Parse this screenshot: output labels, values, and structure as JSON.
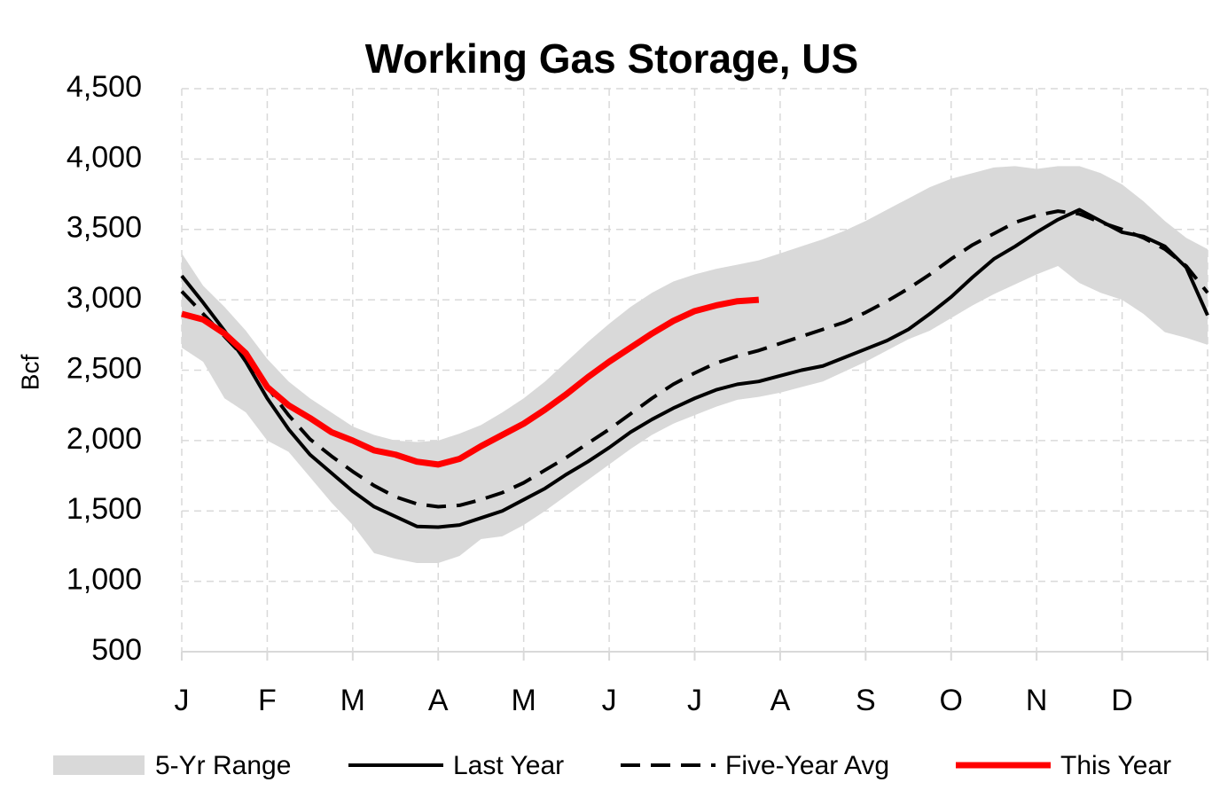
{
  "chart_data": {
    "type": "line",
    "title": "Working Gas Storage, US",
    "y_label": "Bcf",
    "categories": [
      "J",
      null,
      null,
      null,
      "F",
      null,
      null,
      null,
      "M",
      null,
      null,
      null,
      "A",
      null,
      null,
      null,
      "M",
      null,
      null,
      null,
      "J",
      null,
      null,
      null,
      "J",
      null,
      null,
      null,
      "A",
      null,
      null,
      null,
      "S",
      null,
      null,
      null,
      "O",
      null,
      null,
      null,
      "N",
      null,
      null,
      null,
      "D",
      null,
      null,
      null,
      null
    ],
    "ylim": [
      500,
      4500
    ],
    "yticks": [
      500,
      {
        "value": 1000,
        "label": "1,000"
      },
      {
        "value": 1500,
        "label": "1,500"
      },
      {
        "value": 2000,
        "label": "2,000"
      },
      {
        "value": 2500,
        "label": "2,500"
      },
      {
        "value": 3000,
        "label": "3,000"
      },
      {
        "value": 3500,
        "label": "3,500"
      },
      {
        "value": 4000,
        "label": "4,000"
      },
      {
        "value": 4500,
        "label": "4,500"
      }
    ],
    "grid": true,
    "legend": "bottom",
    "series": [
      {
        "name": "5-Yr Range",
        "type": "band",
        "color": "#d9d9d9",
        "high": [
          3330,
          3100,
          2950,
          2780,
          2580,
          2420,
          2300,
          2200,
          2100,
          2040,
          2000,
          1990,
          2000,
          2050,
          2110,
          2200,
          2300,
          2420,
          2560,
          2700,
          2830,
          2950,
          3050,
          3130,
          3180,
          3220,
          3250,
          3280,
          3330,
          3380,
          3430,
          3490,
          3560,
          3640,
          3720,
          3800,
          3860,
          3900,
          3940,
          3950,
          3930,
          3950,
          3950,
          3900,
          3820,
          3700,
          3560,
          3440,
          3360
        ],
        "low": [
          2660,
          2560,
          2300,
          2200,
          2000,
          1920,
          1740,
          1560,
          1400,
          1200,
          1160,
          1130,
          1130,
          1180,
          1300,
          1320,
          1400,
          1500,
          1610,
          1720,
          1830,
          1940,
          2040,
          2120,
          2180,
          2240,
          2290,
          2310,
          2340,
          2380,
          2420,
          2490,
          2560,
          2640,
          2720,
          2780,
          2870,
          2960,
          3040,
          3110,
          3180,
          3240,
          3120,
          3050,
          3000,
          2900,
          2770,
          2730,
          2680
        ]
      },
      {
        "name": "Last Year",
        "color": "#000000",
        "style": "solid",
        "values": [
          3170,
          2980,
          2780,
          2560,
          2300,
          2080,
          1900,
          1770,
          1640,
          1530,
          1460,
          1390,
          1385,
          1400,
          1450,
          1500,
          1580,
          1660,
          1760,
          1850,
          1950,
          2060,
          2150,
          2230,
          2300,
          2360,
          2400,
          2420,
          2460,
          2500,
          2530,
          2590,
          2650,
          2710,
          2790,
          2900,
          3020,
          3160,
          3290,
          3380,
          3480,
          3570,
          3640,
          3560,
          3480,
          3450,
          3380,
          3230,
          2890
        ]
      },
      {
        "name": "Five-Year Avg",
        "color": "#000000",
        "style": "dashed",
        "values": [
          3060,
          2900,
          2740,
          2580,
          2380,
          2180,
          2010,
          1890,
          1780,
          1680,
          1600,
          1550,
          1530,
          1540,
          1580,
          1630,
          1700,
          1790,
          1880,
          1980,
          2080,
          2190,
          2300,
          2400,
          2480,
          2550,
          2600,
          2640,
          2690,
          2740,
          2790,
          2840,
          2910,
          2990,
          3080,
          3180,
          3290,
          3390,
          3470,
          3550,
          3600,
          3630,
          3610,
          3550,
          3500,
          3440,
          3360,
          3240,
          3050
        ]
      },
      {
        "name": "This Year",
        "color": "#ff0000",
        "style": "solid",
        "values": [
          2900,
          2860,
          2760,
          2620,
          2380,
          2250,
          2160,
          2060,
          2000,
          1930,
          1900,
          1850,
          1830,
          1870,
          1960,
          2040,
          2120,
          2220,
          2330,
          2450,
          2560,
          2660,
          2760,
          2850,
          2920,
          2960,
          2990,
          3000,
          null,
          null,
          null,
          null,
          null,
          null,
          null,
          null,
          null,
          null,
          null,
          null,
          null,
          null,
          null,
          null,
          null,
          null,
          null,
          null,
          null
        ]
      }
    ]
  }
}
